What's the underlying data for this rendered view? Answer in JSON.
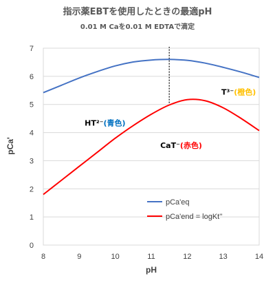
{
  "chart_data": {
    "type": "line",
    "title": "指示薬EBTを使用したときの最適pH",
    "subtitle": "0.01 M Caを0.01 M EDTAで滴定",
    "xlabel": "pH",
    "ylabel": "pCa'",
    "xlim": [
      8,
      14
    ],
    "ylim": [
      0,
      7
    ],
    "xticks": [
      "8",
      "9",
      "10",
      "11",
      "12",
      "13",
      "14"
    ],
    "yticks": [
      "0",
      "1",
      "2",
      "3",
      "4",
      "5",
      "6",
      "7"
    ],
    "grid": "horizontal",
    "legend_position": "bottom-left",
    "series": [
      {
        "name": "pCa'eq",
        "color": "#4472C4",
        "x": [
          8,
          8.5,
          9,
          9.5,
          10,
          10.5,
          11,
          11.5,
          12,
          12.5,
          13,
          13.5,
          14
        ],
        "y": [
          5.42,
          5.68,
          5.94,
          6.17,
          6.37,
          6.51,
          6.58,
          6.6,
          6.57,
          6.47,
          6.32,
          6.15,
          5.96
        ]
      },
      {
        "name": "pCa'end = logKt''",
        "color": "#FF0000",
        "x": [
          8,
          8.5,
          9,
          9.5,
          10,
          10.5,
          11,
          11.5,
          12,
          12.5,
          13,
          13.5,
          14
        ],
        "y": [
          1.8,
          2.3,
          2.8,
          3.3,
          3.8,
          4.25,
          4.65,
          4.98,
          5.17,
          5.13,
          4.88,
          4.5,
          4.07
        ]
      }
    ],
    "vline": {
      "x": 11.5,
      "y_from": 5.05,
      "y_to": 7.05
    },
    "annotations": [
      {
        "text": "HT²⁻",
        "color_text": "(青色)",
        "color": "#0070C0",
        "x": 9.15,
        "y": 4.25
      },
      {
        "text": "CaT⁻",
        "color_text": "(赤色)",
        "color": "#FF0000",
        "x": 11.25,
        "y": 3.45
      },
      {
        "text": "T³⁻",
        "color_text": "(橙色)",
        "color": "#FFC000",
        "x": 12.95,
        "y": 5.35
      }
    ]
  }
}
